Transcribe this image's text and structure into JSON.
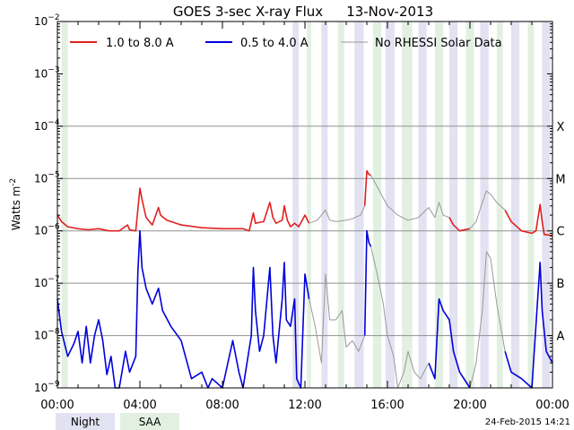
{
  "chart_data": {
    "type": "line",
    "title": "GOES 3-sec X-ray Flux",
    "date_label": "13-Nov-2013",
    "ylabel": "Watts m",
    "ylabel_sup": "-2",
    "y_scale": "log",
    "ylim": [
      1e-09,
      0.01
    ],
    "xlim": [
      0,
      24
    ],
    "x_ticks": [
      "00:00",
      "04:00",
      "08:00",
      "12:00",
      "16:00",
      "20:00",
      "00:00"
    ],
    "x_tick_hours": [
      0,
      4,
      8,
      12,
      16,
      20,
      24
    ],
    "y_tick_exponents": [
      -2,
      -3,
      -4,
      -5,
      -6,
      -7,
      -8,
      -9
    ],
    "y_tick_base": "10",
    "flare_classes": [
      {
        "label": "X",
        "exponent": -4
      },
      {
        "label": "M",
        "exponent": -5
      },
      {
        "label": "C",
        "exponent": -6
      },
      {
        "label": "B",
        "exponent": -7
      },
      {
        "label": "A",
        "exponent": -8
      }
    ],
    "grid": "horizontal",
    "legend_position": "top",
    "colors": {
      "long": "#e02020",
      "short": "#0000dd",
      "no_data": "#999999",
      "night": "#e2e2f2",
      "saa": "#e2f0e2"
    },
    "series": [
      {
        "name": "1.0 to 8.0 A",
        "points": [
          [
            0.0,
            2e-06
          ],
          [
            0.2,
            1.5e-06
          ],
          [
            0.5,
            1.2e-06
          ],
          [
            1.0,
            1.1e-06
          ],
          [
            1.5,
            1.05e-06
          ],
          [
            2.0,
            1.1e-06
          ],
          [
            2.5,
            1e-06
          ],
          [
            3.0,
            1e-06
          ],
          [
            3.4,
            1.3e-06
          ],
          [
            3.5,
            1.05e-06
          ],
          [
            3.8,
            1e-06
          ],
          [
            4.0,
            6.5e-06
          ],
          [
            4.1,
            4e-06
          ],
          [
            4.3,
            1.8e-06
          ],
          [
            4.6,
            1.3e-06
          ],
          [
            4.9,
            2.8e-06
          ],
          [
            5.0,
            2e-06
          ],
          [
            5.3,
            1.6e-06
          ],
          [
            6.0,
            1.3e-06
          ],
          [
            7.0,
            1.15e-06
          ],
          [
            8.0,
            1.1e-06
          ],
          [
            9.0,
            1.1e-06
          ],
          [
            9.3,
            1e-06
          ],
          [
            9.5,
            2.2e-06
          ],
          [
            9.6,
            1.4e-06
          ],
          [
            10.0,
            1.5e-06
          ],
          [
            10.3,
            3.5e-06
          ],
          [
            10.45,
            1.8e-06
          ],
          [
            10.6,
            1.4e-06
          ],
          [
            10.9,
            1.6e-06
          ],
          [
            11.0,
            3e-06
          ],
          [
            11.15,
            1.6e-06
          ],
          [
            11.3,
            1.2e-06
          ],
          [
            11.5,
            1.4e-06
          ],
          [
            11.7,
            1.2e-06
          ],
          [
            12.0,
            2e-06
          ],
          [
            12.2,
            1.4e-06
          ]
        ]
      },
      {
        "name": "1.0 to 8.0 A",
        "points": [
          [
            14.9,
            3e-06
          ],
          [
            15.0,
            1.4e-05
          ],
          [
            15.1,
            1.2e-05
          ],
          [
            15.2,
            1.15e-05
          ]
        ]
      },
      {
        "name": "1.0 to 8.0 A",
        "points": [
          [
            19.0,
            1.8e-06
          ],
          [
            19.2,
            1.3e-06
          ],
          [
            19.5,
            1e-06
          ],
          [
            20.0,
            1.1e-06
          ]
        ]
      },
      {
        "name": "1.0 to 8.0 A",
        "points": [
          [
            21.7,
            2.5e-06
          ],
          [
            22.0,
            1.5e-06
          ],
          [
            22.5,
            1e-06
          ],
          [
            23.0,
            9e-07
          ],
          [
            23.2,
            1e-06
          ],
          [
            23.4,
            3.2e-06
          ],
          [
            23.5,
            1.5e-06
          ],
          [
            23.6,
            8.5e-07
          ],
          [
            24.0,
            8.2e-07
          ]
        ]
      },
      {
        "name": "0.5 to 4.0 A",
        "points": [
          [
            0.0,
            5e-08
          ],
          [
            0.2,
            1.2e-08
          ],
          [
            0.5,
            4e-09
          ],
          [
            0.8,
            7e-09
          ],
          [
            1.0,
            1.2e-08
          ],
          [
            1.2,
            3e-09
          ],
          [
            1.4,
            1.5e-08
          ],
          [
            1.6,
            3e-09
          ],
          [
            1.8,
            1e-08
          ],
          [
            2.0,
            2e-08
          ],
          [
            2.2,
            8e-09
          ],
          [
            2.4,
            1.8e-09
          ],
          [
            2.6,
            4e-09
          ],
          [
            2.8,
            1e-09
          ],
          [
            3.0,
            1e-09
          ],
          [
            3.3,
            5e-09
          ],
          [
            3.5,
            2e-09
          ],
          [
            3.8,
            4e-09
          ],
          [
            3.9,
            1.6e-07
          ],
          [
            4.0,
            1e-06
          ],
          [
            4.1,
            2e-07
          ],
          [
            4.3,
            8e-08
          ],
          [
            4.6,
            4e-08
          ],
          [
            4.9,
            8e-08
          ],
          [
            5.1,
            3e-08
          ],
          [
            5.5,
            1.5e-08
          ],
          [
            6.0,
            8e-09
          ],
          [
            6.5,
            1.5e-09
          ],
          [
            7.0,
            2e-09
          ],
          [
            7.3,
            1e-09
          ],
          [
            7.5,
            1.5e-09
          ],
          [
            8.0,
            1e-09
          ],
          [
            8.5,
            8e-09
          ],
          [
            8.8,
            2e-09
          ],
          [
            9.0,
            1e-09
          ],
          [
            9.4,
            1e-08
          ],
          [
            9.5,
            2e-07
          ],
          [
            9.6,
            3e-08
          ],
          [
            9.8,
            5e-09
          ],
          [
            10.0,
            1e-08
          ],
          [
            10.3,
            2e-07
          ],
          [
            10.45,
            1e-08
          ],
          [
            10.6,
            3e-09
          ],
          [
            10.9,
            5e-08
          ],
          [
            11.0,
            2.5e-07
          ],
          [
            11.1,
            2e-08
          ],
          [
            11.3,
            1.5e-08
          ],
          [
            11.5,
            5e-08
          ],
          [
            11.6,
            1.5e-09
          ],
          [
            11.8,
            1e-09
          ],
          [
            12.0,
            1.5e-07
          ],
          [
            12.2,
            5e-08
          ]
        ]
      },
      {
        "name": "0.5 to 4.0 A",
        "points": [
          [
            14.9,
            1e-08
          ],
          [
            15.0,
            1e-06
          ],
          [
            15.1,
            6e-07
          ],
          [
            15.2,
            5e-07
          ]
        ]
      },
      {
        "name": "0.5 to 4.0 A",
        "points": [
          [
            18.0,
            3e-09
          ],
          [
            18.3,
            1.5e-09
          ],
          [
            18.5,
            5e-08
          ],
          [
            18.7,
            3e-08
          ],
          [
            19.0,
            2e-08
          ],
          [
            19.2,
            5e-09
          ],
          [
            19.5,
            2e-09
          ],
          [
            20.0,
            1e-09
          ]
        ]
      },
      {
        "name": "0.5 to 4.0 A",
        "points": [
          [
            21.7,
            5e-09
          ],
          [
            22.0,
            2e-09
          ],
          [
            22.5,
            1.5e-09
          ],
          [
            23.0,
            1e-09
          ],
          [
            23.4,
            2.5e-07
          ],
          [
            23.5,
            3e-08
          ],
          [
            23.7,
            5e-09
          ],
          [
            24.0,
            3e-09
          ]
        ]
      },
      {
        "name": "No RHESSI Solar Data",
        "points": [
          [
            12.2,
            1.4e-06
          ],
          [
            12.6,
            1.6e-06
          ],
          [
            13.0,
            2.5e-06
          ],
          [
            13.2,
            1.6e-06
          ],
          [
            13.5,
            1.5e-06
          ],
          [
            14.0,
            1.6e-06
          ],
          [
            14.3,
            1.7e-06
          ],
          [
            14.7,
            2e-06
          ],
          [
            14.9,
            3e-06
          ]
        ]
      },
      {
        "name": "No RHESSI Solar Data",
        "points": [
          [
            15.2,
            1.15e-05
          ],
          [
            15.5,
            7e-06
          ],
          [
            16.0,
            3e-06
          ],
          [
            16.5,
            2e-06
          ],
          [
            17.0,
            1.6e-06
          ],
          [
            17.5,
            1.8e-06
          ],
          [
            18.0,
            2.8e-06
          ],
          [
            18.3,
            1.8e-06
          ],
          [
            18.5,
            3.5e-06
          ],
          [
            18.7,
            2e-06
          ],
          [
            19.0,
            1.8e-06
          ]
        ]
      },
      {
        "name": "No RHESSI Solar Data",
        "points": [
          [
            20.0,
            1.1e-06
          ],
          [
            20.3,
            1.5e-06
          ],
          [
            20.6,
            3.5e-06
          ],
          [
            20.8,
            5.8e-06
          ],
          [
            21.0,
            5e-06
          ],
          [
            21.3,
            3.5e-06
          ],
          [
            21.7,
            2.5e-06
          ]
        ]
      },
      {
        "name": "No RHESSI Solar Data",
        "points": [
          [
            12.2,
            5e-08
          ],
          [
            12.5,
            1.5e-08
          ],
          [
            12.8,
            3e-09
          ],
          [
            13.0,
            1.5e-07
          ],
          [
            13.2,
            2e-08
          ],
          [
            13.5,
            2e-08
          ],
          [
            13.8,
            3e-08
          ],
          [
            14.0,
            6e-09
          ],
          [
            14.3,
            8e-09
          ],
          [
            14.6,
            5e-09
          ],
          [
            14.9,
            1e-08
          ]
        ]
      },
      {
        "name": "No RHESSI Solar Data",
        "points": [
          [
            15.2,
            5e-07
          ],
          [
            15.5,
            1.5e-07
          ],
          [
            15.8,
            4e-08
          ],
          [
            16.0,
            1e-08
          ],
          [
            16.3,
            4e-09
          ],
          [
            16.5,
            1e-09
          ],
          [
            16.8,
            2e-09
          ],
          [
            17.0,
            5e-09
          ],
          [
            17.3,
            2e-09
          ],
          [
            17.6,
            1.5e-09
          ],
          [
            18.0,
            3e-09
          ]
        ]
      },
      {
        "name": "No RHESSI Solar Data",
        "points": [
          [
            20.0,
            1e-09
          ],
          [
            20.3,
            3e-09
          ],
          [
            20.6,
            3e-08
          ],
          [
            20.8,
            4e-07
          ],
          [
            21.0,
            3e-07
          ],
          [
            21.3,
            4e-08
          ],
          [
            21.7,
            5e-09
          ]
        ]
      }
    ],
    "night_intervals": [
      [
        11.4,
        11.7
      ],
      [
        12.8,
        13.1
      ],
      [
        14.4,
        14.85
      ],
      [
        15.9,
        16.35
      ],
      [
        17.5,
        17.9
      ],
      [
        19.0,
        19.4
      ],
      [
        20.5,
        20.9
      ],
      [
        22.0,
        22.4
      ],
      [
        23.5,
        23.9
      ]
    ],
    "saa_intervals": [
      [
        0.2,
        0.5
      ],
      [
        12.1,
        12.3
      ],
      [
        13.6,
        13.9
      ],
      [
        15.3,
        15.7
      ],
      [
        16.7,
        17.2
      ],
      [
        18.3,
        18.7
      ],
      [
        19.8,
        20.2
      ],
      [
        21.3,
        21.6
      ],
      [
        22.8,
        23.1
      ]
    ]
  },
  "legend": {
    "long_label": "1.0 to 8.0 A",
    "short_label": "0.5 to 4.0 A",
    "no_data_label": "No RHESSI Solar Data"
  },
  "bottom_legend": {
    "night_label": "Night",
    "saa_label": "SAA"
  },
  "timestamp": "24-Feb-2015 14:21"
}
